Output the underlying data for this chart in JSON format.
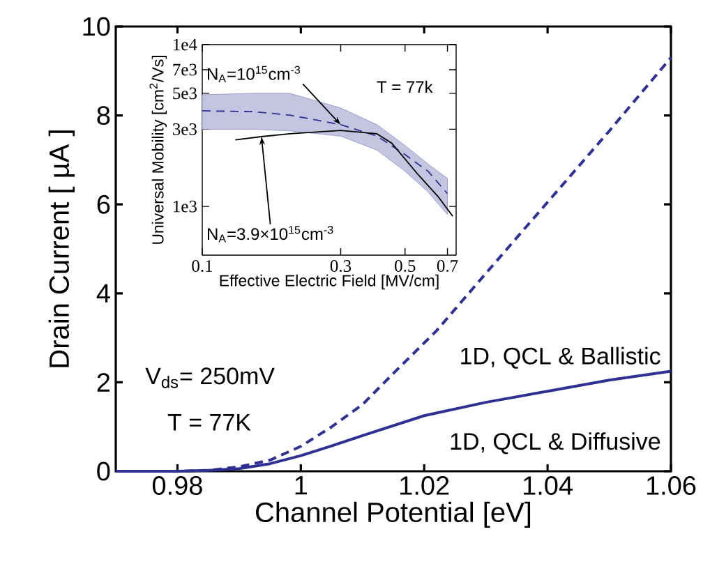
{
  "chart_data": [
    {
      "type": "line",
      "xlabel": "Channel Potential [eV]",
      "ylabel": "Drain Current [ µA ]",
      "xlim": [
        0.97,
        1.06
      ],
      "ylim": [
        0,
        10
      ],
      "xticks": [
        0.98,
        1,
        1.02,
        1.04,
        1.06
      ],
      "yticks": [
        0,
        2,
        4,
        6,
        8,
        10
      ],
      "marker": "none",
      "annotations": [
        "V$_{ds}$= 250mV",
        "T = 77K",
        "1D, QCL & Ballistic",
        "1D, QCL & Diffusive"
      ],
      "series": [
        {
          "color": "#2e3192",
          "line_style": "dashed",
          "x": [
            0.97,
            0.98,
            0.985,
            0.99,
            0.995,
            1.0,
            1.005,
            1.01,
            1.015,
            1.022,
            1.03,
            1.04,
            1.05,
            1.06
          ],
          "values": [
            0,
            0,
            0.02,
            0.1,
            0.25,
            0.56,
            1.0,
            1.5,
            2.2,
            3.16,
            4.45,
            6.05,
            7.65,
            9.3
          ]
        },
        {
          "color": "#2e3192",
          "line_style": "solid",
          "x": [
            0.97,
            0.98,
            0.985,
            0.99,
            0.995,
            1.0,
            1.005,
            1.01,
            1.02,
            1.03,
            1.04,
            1.05,
            1.06
          ],
          "values": [
            0,
            0,
            0.02,
            0.06,
            0.17,
            0.35,
            0.57,
            0.8,
            1.25,
            1.55,
            1.8,
            2.05,
            2.25
          ]
        }
      ]
    },
    {
      "type": "line",
      "xlabel": "Effective Electric Field [MV/cm]",
      "ylabel": "Universal Mobility [cm$^{2}$/Vs]",
      "log": "xy",
      "xlim": [
        0.1,
        0.75
      ],
      "ylim": [
        500,
        10000
      ],
      "xticks": [
        0.1,
        0.3,
        0.5,
        0.7
      ],
      "yticks": [
        {
          "value": 1000,
          "label": "1e3"
        },
        {
          "value": 3000,
          "label": "3e3"
        },
        {
          "value": 5000,
          "label": "5e3"
        },
        {
          "value": 7000,
          "label": "7e3"
        },
        {
          "value": 10000,
          "label": "1e4"
        }
      ],
      "marker": "none",
      "annotations": [
        "T = 77k",
        {
          "text": "N$_{A}$=10$^{15}$cm$^{-3}$",
          "x": 0.3,
          "y": 3200
        },
        {
          "text": "N$_{A}$=3.9×10$^{15}$cm$^{-3}$",
          "x": 0.16,
          "y": 2700
        }
      ],
      "series": [
        {
          "color": "#2e3192",
          "line_style": "dashed",
          "x": [
            0.1,
            0.15,
            0.2,
            0.3,
            0.4,
            0.5,
            0.6,
            0.7
          ],
          "values": [
            3900,
            3850,
            3670,
            3200,
            2720,
            2090,
            1650,
            1200
          ],
          "upper": [
            4900,
            5000,
            5000,
            4060,
            3200,
            2380,
            1830,
            1490
          ],
          "lower": [
            3000,
            3000,
            2930,
            2720,
            2230,
            1650,
            1230,
            890
          ]
        },
        {
          "color": "#000000",
          "line_style": "solid",
          "x": [
            0.13,
            0.16,
            0.2,
            0.3,
            0.4,
            0.45,
            0.55,
            0.65,
            0.73
          ],
          "values": [
            2580,
            2700,
            2810,
            2950,
            2810,
            2460,
            1600,
            1150,
            870
          ]
        }
      ]
    }
  ]
}
